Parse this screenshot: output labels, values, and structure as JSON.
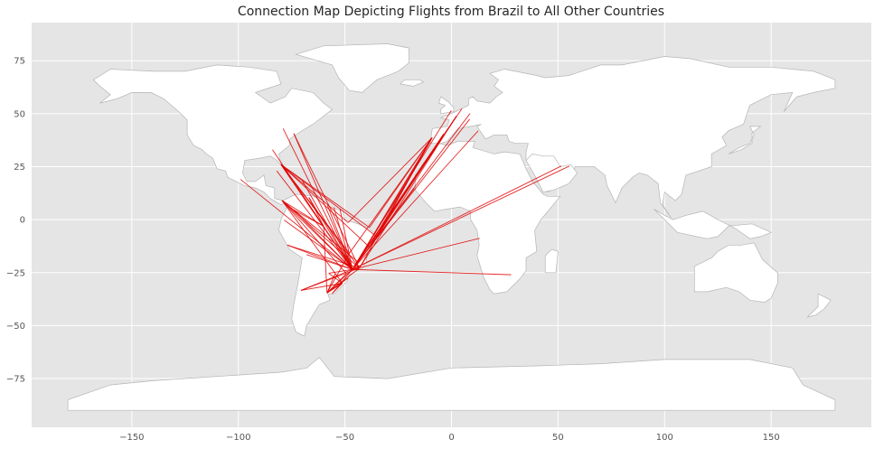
{
  "chart_data": {
    "type": "map",
    "title": "Connection Map Depicting Flights from Brazil to All Other Countries",
    "xlim": [
      -197,
      197
    ],
    "ylim": [
      -98,
      93
    ],
    "x_ticks": [
      -150,
      -100,
      -50,
      0,
      50,
      100,
      150
    ],
    "y_ticks": [
      75,
      50,
      25,
      0,
      -25,
      -50,
      -75
    ],
    "grid": true,
    "colors": {
      "background": "#e5e5e5",
      "land": "#ffffff",
      "border": "#b5b5b5",
      "route": "#e00000"
    },
    "routes": [
      {
        "from": [
          -46.5,
          -23.5
        ],
        "to": [
          -79,
          43
        ]
      },
      {
        "from": [
          -46.5,
          -23.5
        ],
        "to": [
          -74,
          40.7
        ]
      },
      {
        "from": [
          -46.5,
          -23.5
        ],
        "to": [
          -80,
          26
        ]
      },
      {
        "from": [
          -46.5,
          -23.5
        ],
        "to": [
          -84,
          33
        ]
      },
      {
        "from": [
          -46.5,
          -23.5
        ],
        "to": [
          -82,
          23
        ]
      },
      {
        "from": [
          -46.5,
          -23.5
        ],
        "to": [
          -99,
          19
        ]
      },
      {
        "from": [
          -46.5,
          -23.5
        ],
        "to": [
          -79.5,
          9
        ]
      },
      {
        "from": [
          -46.5,
          -23.5
        ],
        "to": [
          -70,
          18.5
        ]
      },
      {
        "from": [
          -46.5,
          -23.5
        ],
        "to": [
          -66.9,
          10.5
        ]
      },
      {
        "from": [
          -46.5,
          -23.5
        ],
        "to": [
          -74,
          4.6
        ]
      },
      {
        "from": [
          -46.5,
          -23.5
        ],
        "to": [
          -78.5,
          -0.2
        ]
      },
      {
        "from": [
          -46.5,
          -23.5
        ],
        "to": [
          -77,
          -12
        ]
      },
      {
        "from": [
          -46.5,
          -23.5
        ],
        "to": [
          -68,
          -16.5
        ]
      },
      {
        "from": [
          -46.5,
          -23.5
        ],
        "to": [
          -70.6,
          -33.4
        ]
      },
      {
        "from": [
          -46.5,
          -23.5
        ],
        "to": [
          -58.4,
          -34.6
        ]
      },
      {
        "from": [
          -46.5,
          -23.5
        ],
        "to": [
          -56,
          -34.9
        ]
      },
      {
        "from": [
          -46.5,
          -23.5
        ],
        "to": [
          -57.6,
          -25.3
        ]
      },
      {
        "from": [
          -46.5,
          -23.5
        ],
        "to": [
          -58.2,
          6.8
        ]
      },
      {
        "from": [
          -46.5,
          -23.5
        ],
        "to": [
          -55.2,
          5.8
        ]
      },
      {
        "from": [
          -46.5,
          -23.5
        ],
        "to": [
          -52.3,
          4.9
        ]
      },
      {
        "from": [
          -46.5,
          -23.5
        ],
        "to": [
          -9.1,
          38.7
        ]
      },
      {
        "from": [
          -46.5,
          -23.5
        ],
        "to": [
          -3.7,
          40.4
        ]
      },
      {
        "from": [
          -46.5,
          -23.5
        ],
        "to": [
          2.35,
          48.9
        ]
      },
      {
        "from": [
          -46.5,
          -23.5
        ],
        "to": [
          -0.1,
          51.5
        ]
      },
      {
        "from": [
          -46.5,
          -23.5
        ],
        "to": [
          8.7,
          50.1
        ]
      },
      {
        "from": [
          -46.5,
          -23.5
        ],
        "to": [
          4.9,
          52.4
        ]
      },
      {
        "from": [
          -46.5,
          -23.5
        ],
        "to": [
          12.5,
          41.9
        ]
      },
      {
        "from": [
          -46.5,
          -23.5
        ],
        "to": [
          8.5,
          47.4
        ]
      },
      {
        "from": [
          -46.5,
          -23.5
        ],
        "to": [
          -7.6,
          33.6
        ]
      },
      {
        "from": [
          -46.5,
          -23.5
        ],
        "to": [
          -17.4,
          14.7
        ]
      },
      {
        "from": [
          -46.5,
          -23.5
        ],
        "to": [
          13.2,
          -8.8
        ]
      },
      {
        "from": [
          -46.5,
          -23.5
        ],
        "to": [
          28,
          -26
        ]
      },
      {
        "from": [
          -46.5,
          -23.5
        ],
        "to": [
          55.3,
          25.3
        ]
      },
      {
        "from": [
          -46.5,
          -23.5
        ],
        "to": [
          51.5,
          25.3
        ]
      },
      {
        "from": [
          -46.5,
          -23.5
        ],
        "to": [
          -43.2,
          -22.9
        ]
      },
      {
        "from": [
          -43.2,
          -22.9
        ],
        "to": [
          -74,
          40.7
        ]
      },
      {
        "from": [
          -43.2,
          -22.9
        ],
        "to": [
          -80,
          26
        ]
      },
      {
        "from": [
          -43.2,
          -22.9
        ],
        "to": [
          2.35,
          48.9
        ]
      },
      {
        "from": [
          -43.2,
          -22.9
        ],
        "to": [
          -9.1,
          38.7
        ]
      },
      {
        "from": [
          -43.2,
          -22.9
        ],
        "to": [
          -58.4,
          -34.6
        ]
      },
      {
        "from": [
          -43.2,
          -22.9
        ],
        "to": [
          -70.6,
          -33.4
        ]
      },
      {
        "from": [
          -43.2,
          -22.9
        ],
        "to": [
          -77,
          -12
        ]
      },
      {
        "from": [
          -43.2,
          -22.9
        ],
        "to": [
          -79.5,
          9
        ]
      },
      {
        "from": [
          -47.9,
          -15.8
        ],
        "to": [
          -80,
          26
        ]
      },
      {
        "from": [
          -47.9,
          -15.8
        ],
        "to": [
          -9.1,
          38.7
        ]
      },
      {
        "from": [
          -47.9,
          -15.8
        ],
        "to": [
          -58.4,
          -34.6
        ]
      },
      {
        "from": [
          -38.5,
          -12.9
        ],
        "to": [
          -9.1,
          38.7
        ]
      },
      {
        "from": [
          -38.5,
          -12.9
        ],
        "to": [
          -80,
          26
        ]
      },
      {
        "from": [
          -38.5,
          -12.9
        ],
        "to": [
          -3.7,
          40.4
        ]
      },
      {
        "from": [
          -35,
          -8
        ],
        "to": [
          -9.1,
          38.7
        ]
      },
      {
        "from": [
          -35,
          -8
        ],
        "to": [
          -80,
          26
        ]
      },
      {
        "from": [
          -35,
          -8
        ],
        "to": [
          2.35,
          48.9
        ]
      },
      {
        "from": [
          -38.5,
          -3.7
        ],
        "to": [
          -9.1,
          38.7
        ]
      },
      {
        "from": [
          -38.5,
          -3.7
        ],
        "to": [
          -80,
          26
        ]
      },
      {
        "from": [
          -60,
          -3.1
        ],
        "to": [
          -80,
          26
        ]
      },
      {
        "from": [
          -60,
          -3.1
        ],
        "to": [
          -79.5,
          9
        ]
      },
      {
        "from": [
          -60,
          -3.1
        ],
        "to": [
          -66.9,
          10.5
        ]
      },
      {
        "from": [
          -60,
          -3.1
        ],
        "to": [
          -74,
          4.6
        ]
      },
      {
        "from": [
          -60,
          -3.1
        ],
        "to": [
          -58.4,
          -34.6
        ]
      },
      {
        "from": [
          -48.5,
          -1.4
        ],
        "to": [
          -9.1,
          38.7
        ]
      },
      {
        "from": [
          -48.5,
          -1.4
        ],
        "to": [
          -80,
          26
        ]
      },
      {
        "from": [
          -43.9,
          -19.9
        ],
        "to": [
          -79.5,
          9
        ]
      },
      {
        "from": [
          -43.9,
          -19.9
        ],
        "to": [
          -9.1,
          38.7
        ]
      },
      {
        "from": [
          -49.3,
          -25.4
        ],
        "to": [
          -58.4,
          -34.6
        ]
      },
      {
        "from": [
          -49.3,
          -25.4
        ],
        "to": [
          -79.5,
          9
        ]
      },
      {
        "from": [
          -51.2,
          -30
        ],
        "to": [
          -58.4,
          -34.6
        ]
      },
      {
        "from": [
          -51.2,
          -30
        ],
        "to": [
          -56,
          -34.9
        ]
      },
      {
        "from": [
          -51.2,
          -30
        ],
        "to": [
          -79.5,
          9
        ]
      },
      {
        "from": [
          -51.2,
          -30
        ],
        "to": [
          -70.6,
          -33.4
        ]
      },
      {
        "from": [
          -51.2,
          -30
        ],
        "to": [
          -57.6,
          -25.3
        ]
      },
      {
        "from": [
          -54.6,
          -25.5
        ],
        "to": [
          -58.4,
          -34.6
        ]
      },
      {
        "from": [
          -48.5,
          -27.6
        ],
        "to": [
          -58.4,
          -34.6
        ]
      }
    ]
  }
}
